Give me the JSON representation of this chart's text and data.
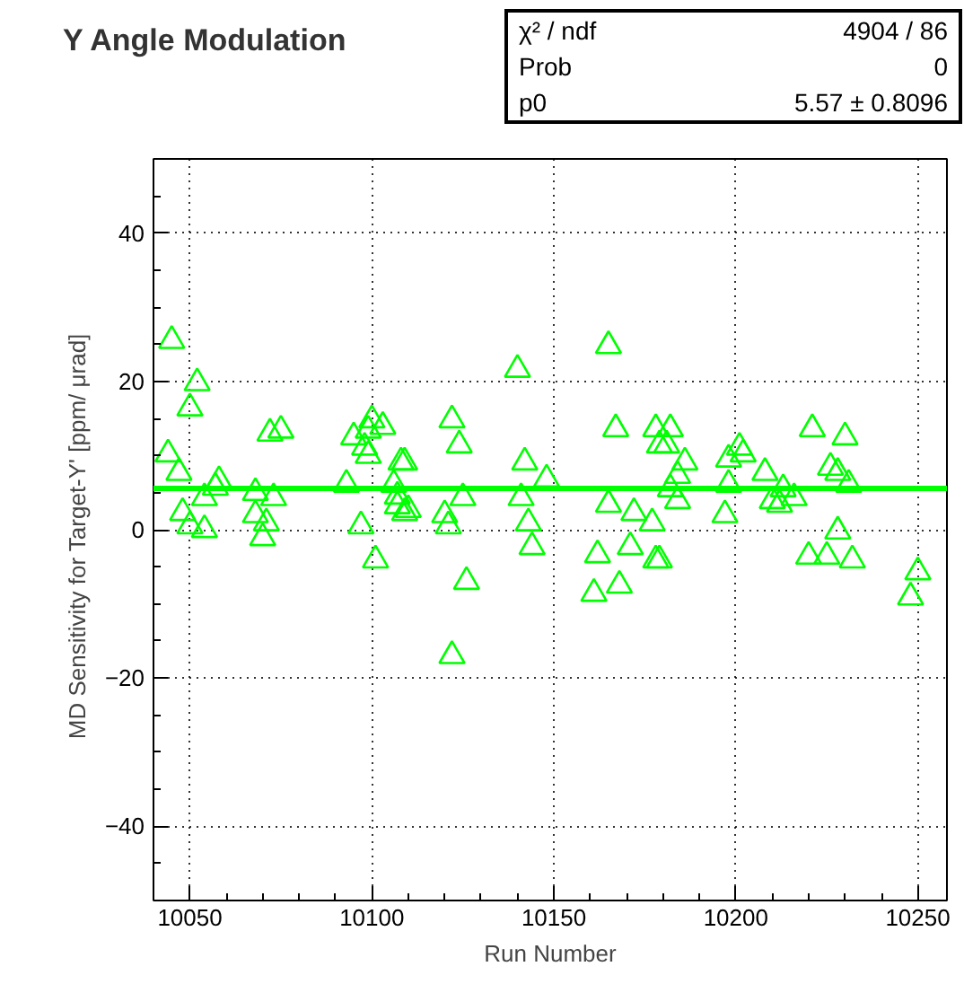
{
  "chart_data": {
    "type": "scatter",
    "title": "Y Angle Modulation",
    "xlabel": "Run Number",
    "ylabel": "MD Sensitivity for Target-Y' [ppm/   μrad]",
    "annotations": [
      "χ² / ndf",
      "4904 / 86",
      "Prob",
      "0",
      "p0",
      "5.57 ± 0.8096"
    ],
    "xlim": [
      10040,
      10258
    ],
    "xticks": [
      10050,
      10100,
      10150,
      10200,
      10250
    ],
    "ylim": [
      -50,
      50
    ],
    "yticks": [
      -40,
      -20,
      0,
      20,
      40
    ],
    "grid": true,
    "marker": "triangle",
    "ref_lines": [
      {
        "axis": "y",
        "value": 5.57,
        "label": null,
        "color": "#00ff00",
        "line_style": "solid"
      }
    ],
    "series": [
      {
        "color": "#00ff00",
        "x": [
          10045,
          10052,
          10050,
          10044,
          10047,
          10048,
          10050,
          10054,
          10054,
          10057,
          10058,
          10068,
          10073,
          10068,
          10071,
          10070,
          10072,
          10075,
          10100,
          10099,
          10103,
          10095,
          10098,
          10099,
          10108,
          10093,
          10106,
          10107,
          10109,
          10097,
          10101,
          10140,
          10165,
          10122,
          10124,
          10109,
          10107,
          10110,
          10125,
          10120,
          10121,
          10142,
          10148,
          10141,
          10143,
          10144,
          10126,
          10122,
          10167,
          10178,
          10179,
          10165,
          10172,
          10177,
          10162,
          10171,
          10178,
          10168,
          10161,
          10182,
          10181,
          10186,
          10184,
          10182,
          10184,
          10179,
          10198,
          10201,
          10202,
          10198,
          10208,
          10197,
          10210,
          10212,
          10213,
          10216,
          10221,
          10230,
          10226,
          10228,
          10231,
          10228,
          10220,
          10225,
          10232,
          10250,
          10248
        ],
        "values": [
          25.5,
          19.8,
          16.4,
          10.2,
          7.7,
          2.3,
          0.5,
          0,
          4.3,
          5.7,
          6.6,
          5,
          4.3,
          2,
          0.9,
          -1.1,
          13,
          13.4,
          14.8,
          13.4,
          13.9,
          12.5,
          11.1,
          10,
          9.1,
          6.1,
          6.1,
          4.5,
          2.3,
          0.5,
          -4.1,
          21.6,
          24.8,
          14.8,
          11.4,
          9.1,
          3.2,
          2.7,
          4.3,
          2,
          0.5,
          9.1,
          6.8,
          4.3,
          0.9,
          -2.3,
          -7,
          -17,
          13.6,
          13.6,
          11.4,
          3.4,
          2.3,
          0.9,
          -3.4,
          -2.3,
          -4.1,
          -7.5,
          -8.6,
          13.6,
          11.4,
          9.1,
          7.3,
          5.5,
          3.9,
          -4.1,
          9.5,
          11.1,
          10.2,
          6.1,
          7.7,
          2,
          3.9,
          3.4,
          5.5,
          4.3,
          13.6,
          12.5,
          8.4,
          7.7,
          6.1,
          -0.2,
          -3.6,
          -3.6,
          -4.1,
          -5.7,
          -9.1
        ]
      }
    ]
  }
}
